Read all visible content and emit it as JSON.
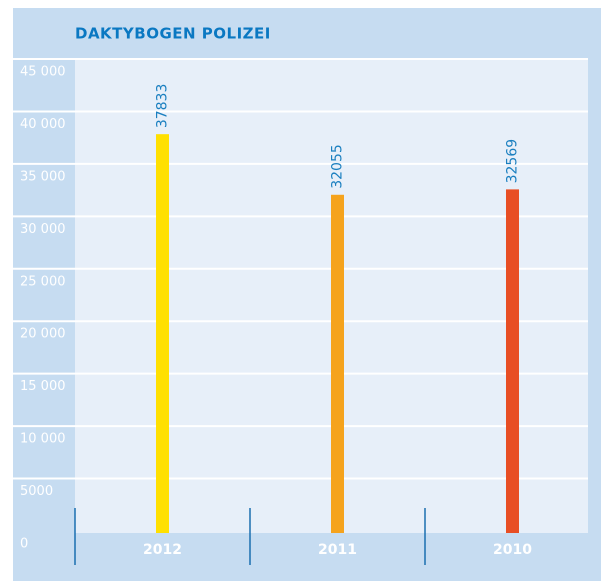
{
  "chart_data": {
    "type": "bar",
    "title": "DAKTYBOGEN POLIZEI",
    "categories": [
      "2012",
      "2011",
      "2010"
    ],
    "values": [
      37833,
      32055,
      32569
    ],
    "colors": [
      "#ffe000",
      "#f5a31d",
      "#e84e24"
    ],
    "ylim": [
      0,
      45000
    ],
    "yticks": [
      0,
      5000,
      {
        "value": 10000,
        "label": "10 000"
      },
      {
        "value": 15000,
        "label": "15 000"
      },
      {
        "value": 20000,
        "label": "20 000"
      },
      {
        "value": 25000,
        "label": "25 000"
      },
      {
        "value": 30000,
        "label": "30 000"
      },
      {
        "value": 35000,
        "label": "35 000"
      },
      {
        "value": 40000,
        "label": "40 000"
      },
      {
        "value": 45000,
        "label": "45 000"
      }
    ],
    "grid": true
  }
}
